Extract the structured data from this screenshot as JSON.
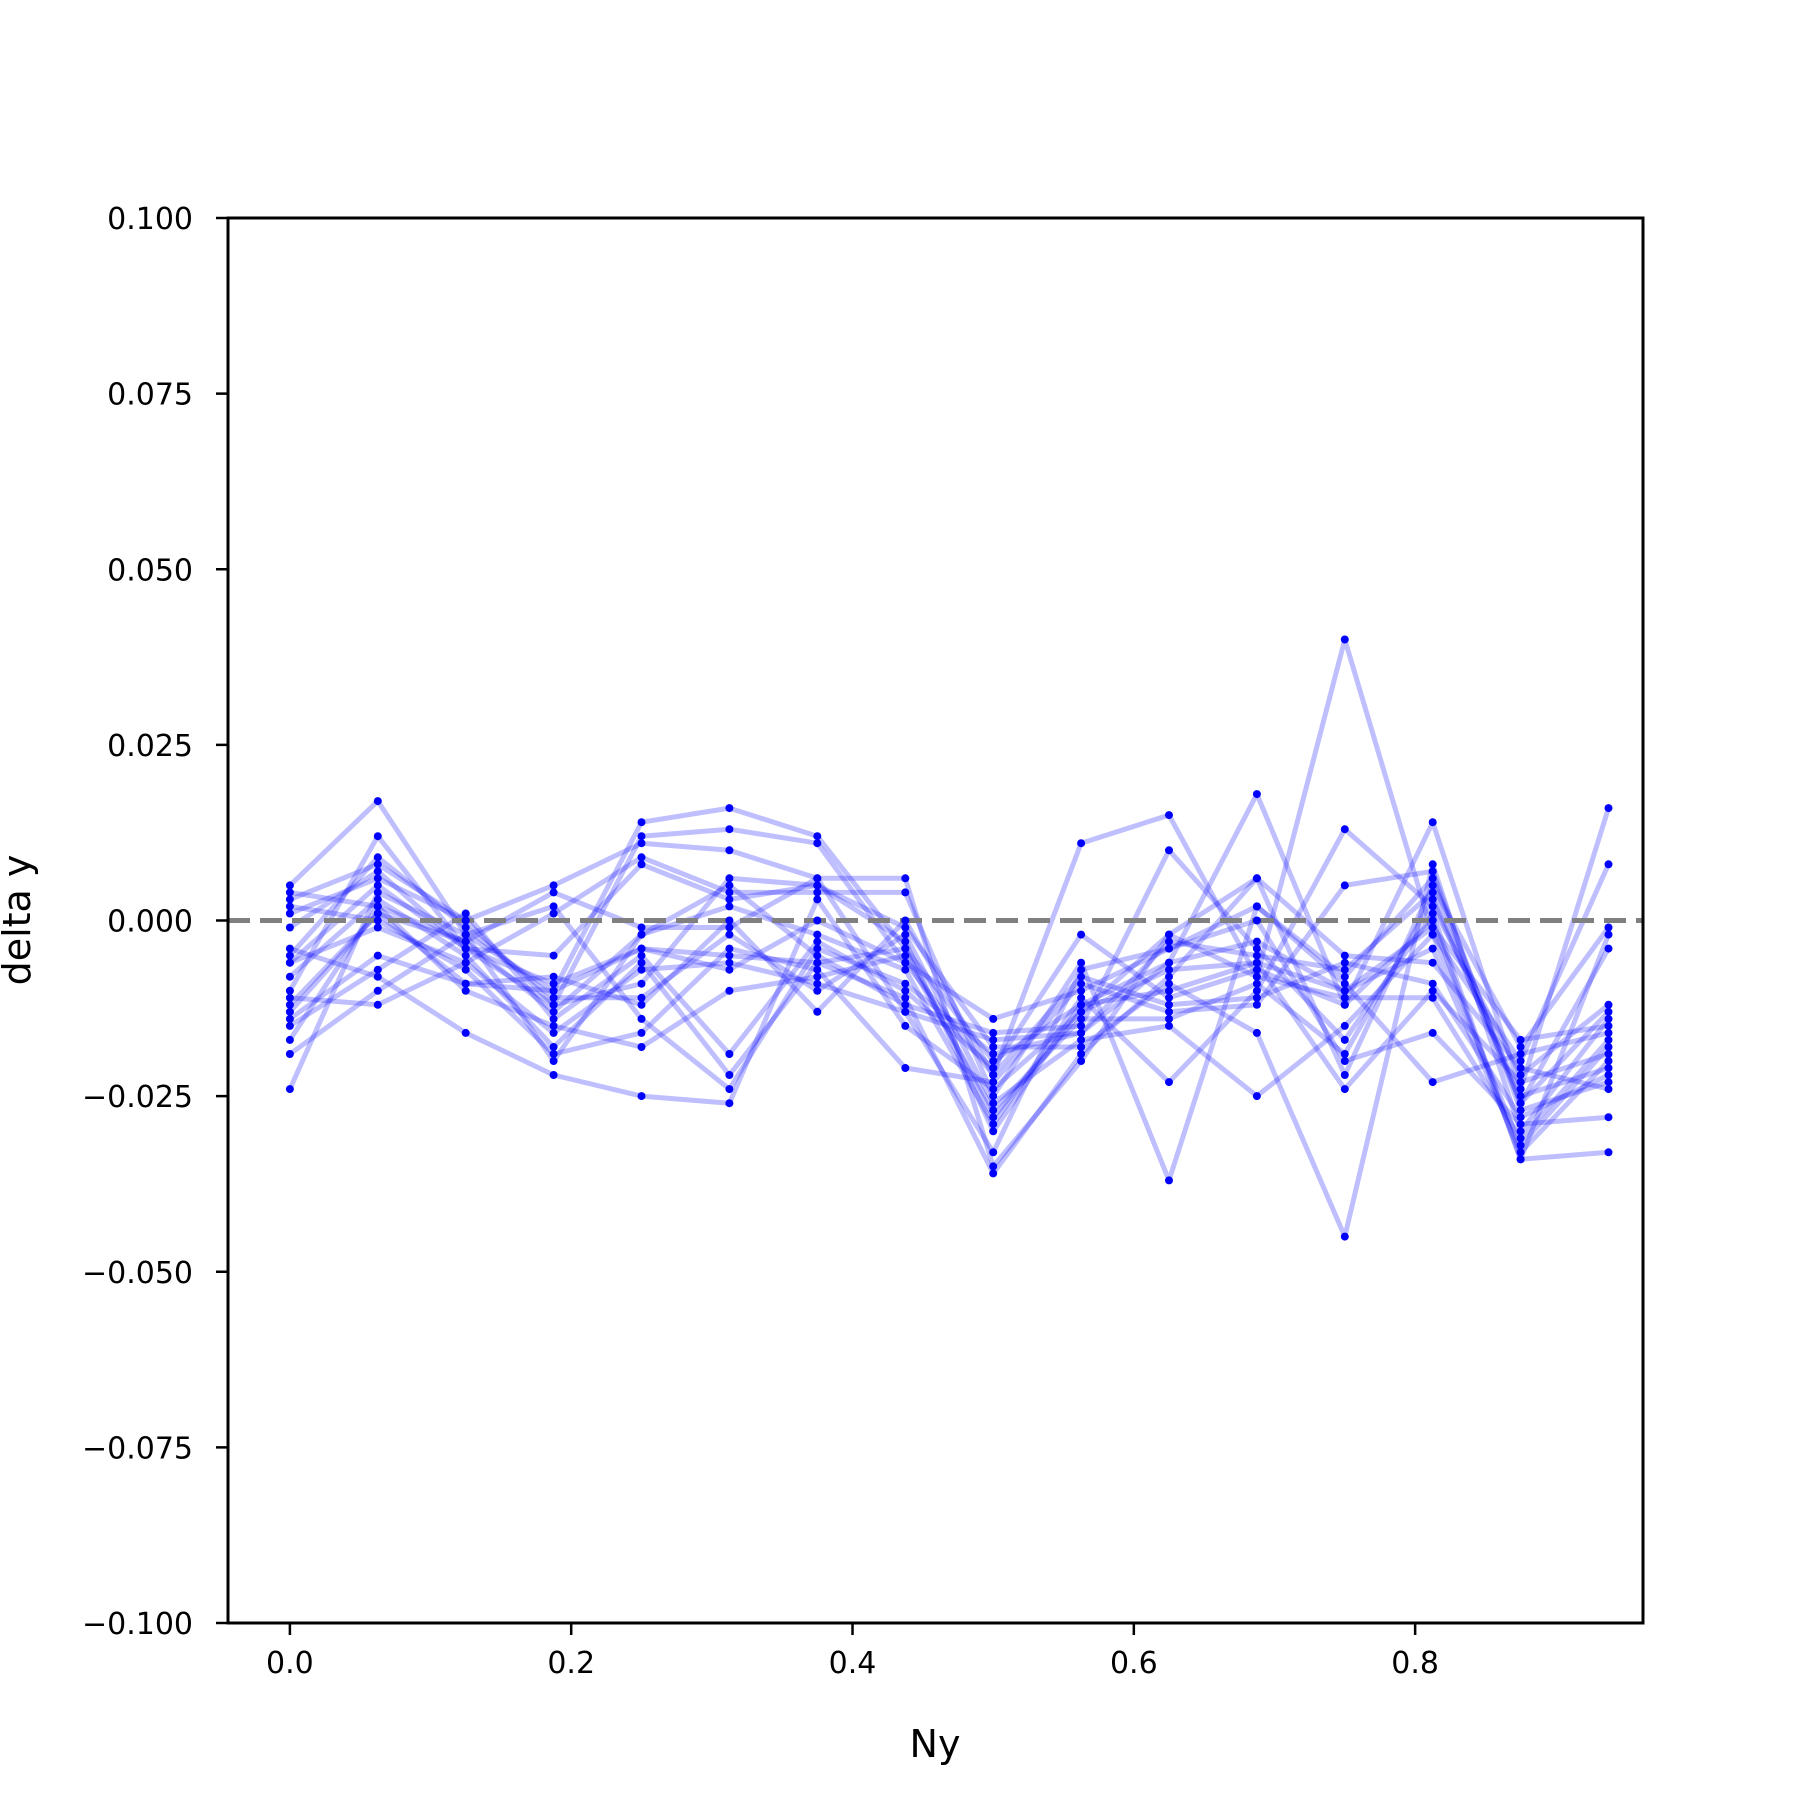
{
  "chart_data": {
    "type": "line",
    "title": "",
    "xlabel": "Ny",
    "ylabel": "delta y",
    "xlim": [
      -0.044,
      0.962
    ],
    "ylim": [
      -0.1,
      0.1
    ],
    "x_ticks": [
      0.0,
      0.2,
      0.4,
      0.6,
      0.8
    ],
    "x_tick_labels": [
      "0.0",
      "0.2",
      "0.4",
      "0.6",
      "0.8"
    ],
    "y_ticks": [
      0.1,
      0.075,
      0.05,
      0.025,
      0.0,
      -0.025,
      -0.05,
      -0.075,
      -0.1
    ],
    "y_tick_labels": [
      "0.100",
      "0.075",
      "0.050",
      "0.025",
      "0.000",
      "−0.025",
      "−0.050",
      "−0.075",
      "−0.100"
    ],
    "reference_line": {
      "y": 0.0,
      "style": "dashed",
      "color": "#808080"
    },
    "series_color": "#0000ff",
    "line_alpha": 0.25,
    "grid": false,
    "legend": "none",
    "x": [
      0.0,
      0.0625,
      0.125,
      0.1875,
      0.25,
      0.3125,
      0.375,
      0.4375,
      0.5,
      0.5625,
      0.625,
      0.6875,
      0.75,
      0.8125,
      0.875,
      0.9375
    ],
    "series": [
      {
        "values": [
          0.005,
          0.017,
          -0.002,
          -0.01,
          0.014,
          0.016,
          0.012,
          -0.004,
          -0.02,
          -0.012,
          -0.006,
          0.018,
          -0.012,
          0.014,
          -0.024,
          0.016
        ]
      },
      {
        "values": [
          -0.01,
          0.012,
          -0.004,
          -0.012,
          0.012,
          0.013,
          0.011,
          -0.006,
          -0.022,
          0.011,
          0.015,
          -0.008,
          0.04,
          -0.002,
          -0.02,
          0.008
        ]
      },
      {
        "values": [
          0.003,
          0.008,
          0.0,
          0.005,
          0.011,
          0.01,
          0.006,
          0.006,
          -0.035,
          -0.02,
          -0.002,
          0.006,
          -0.022,
          0.005,
          -0.018,
          -0.001
        ]
      },
      {
        "values": [
          -0.024,
          0.004,
          -0.002,
          -0.02,
          -0.002,
          0.005,
          -0.005,
          -0.012,
          -0.016,
          -0.015,
          0.01,
          -0.004,
          -0.017,
          0.001,
          -0.034,
          -0.002
        ]
      },
      {
        "values": [
          -0.006,
          -0.001,
          -0.006,
          0.001,
          0.009,
          0.004,
          0.004,
          0.004,
          -0.025,
          -0.006,
          -0.037,
          0.002,
          -0.008,
          0.006,
          -0.026,
          -0.004
        ]
      },
      {
        "values": [
          -0.013,
          0.001,
          -0.003,
          -0.013,
          -0.002,
          0.002,
          -0.002,
          -0.007,
          -0.029,
          -0.011,
          -0.023,
          -0.01,
          0.013,
          0.002,
          -0.022,
          -0.012
        ]
      },
      {
        "values": [
          0.001,
          0.006,
          0.0,
          -0.012,
          -0.009,
          0.006,
          0.005,
          -0.001,
          -0.018,
          -0.018,
          -0.009,
          -0.016,
          -0.045,
          0.008,
          -0.03,
          -0.014
        ]
      },
      {
        "values": [
          -0.011,
          -0.012,
          -0.006,
          -0.016,
          -0.007,
          -0.006,
          -0.009,
          -0.013,
          -0.033,
          -0.007,
          -0.004,
          0.002,
          -0.009,
          -0.023,
          -0.019,
          -0.016
        ]
      },
      {
        "values": [
          -0.004,
          -0.008,
          -0.016,
          -0.022,
          -0.025,
          -0.026,
          0.003,
          -0.015,
          -0.024,
          -0.013,
          -0.007,
          -0.006,
          -0.01,
          -0.004,
          -0.033,
          -0.02
        ]
      },
      {
        "values": [
          -0.017,
          0.002,
          -0.01,
          -0.015,
          -0.018,
          -0.01,
          -0.008,
          -0.005,
          -0.027,
          -0.014,
          -0.014,
          -0.009,
          -0.019,
          0.003,
          -0.025,
          -0.021
        ]
      },
      {
        "values": [
          -0.014,
          -0.005,
          -0.009,
          -0.008,
          -0.012,
          0.0,
          -0.013,
          0.0,
          -0.022,
          -0.008,
          -0.012,
          -0.011,
          -0.006,
          -0.009,
          -0.028,
          -0.022
        ]
      },
      {
        "values": [
          -0.008,
          0.003,
          -0.005,
          -0.018,
          -0.006,
          -0.022,
          -0.006,
          -0.011,
          -0.036,
          -0.019,
          -0.008,
          0.006,
          -0.005,
          -0.006,
          -0.021,
          -0.024
        ]
      },
      {
        "values": [
          0.002,
          0.0,
          -0.007,
          -0.019,
          -0.016,
          -0.004,
          -0.007,
          -0.021,
          -0.023,
          -0.009,
          -0.013,
          -0.012,
          0.005,
          0.007,
          -0.027,
          -0.023
        ]
      },
      {
        "values": [
          -0.005,
          0.009,
          -0.001,
          -0.011,
          -0.011,
          -0.002,
          -0.01,
          -0.002,
          -0.026,
          -0.017,
          -0.015,
          -0.025,
          -0.015,
          -0.002,
          -0.032,
          -0.018
        ]
      },
      {
        "values": [
          -0.001,
          0.007,
          -0.004,
          -0.009,
          -0.004,
          -0.007,
          0.0,
          -0.006,
          -0.014,
          -0.01,
          -0.004,
          0.0,
          -0.02,
          -0.016,
          -0.029,
          -0.028
        ]
      },
      {
        "values": [
          -0.019,
          -0.01,
          -0.002,
          0.002,
          -0.014,
          -0.024,
          -0.004,
          -0.009,
          -0.019,
          -0.016,
          -0.006,
          -0.003,
          -0.01,
          -0.001,
          -0.017,
          -0.015
        ]
      },
      {
        "values": [
          -0.006,
          0.005,
          -0.004,
          -0.005,
          0.008,
          0.003,
          0.005,
          -0.003,
          -0.03,
          -0.012,
          -0.01,
          -0.006,
          -0.024,
          -0.01,
          -0.023,
          -0.019
        ]
      },
      {
        "values": [
          -0.015,
          -0.007,
          0.001,
          -0.014,
          -0.005,
          -0.019,
          -0.003,
          -0.01,
          -0.021,
          -0.002,
          -0.011,
          -0.007,
          -0.012,
          0.0,
          -0.034,
          -0.033
        ]
      },
      {
        "values": [
          -0.012,
          0.001,
          -0.009,
          -0.01,
          -0.004,
          -0.005,
          -0.006,
          -0.004,
          -0.028,
          -0.013,
          -0.002,
          -0.008,
          -0.011,
          -0.011,
          -0.031,
          -0.017
        ]
      },
      {
        "values": [
          0.004,
          0.002,
          -0.003,
          0.004,
          -0.001,
          -0.001,
          0.006,
          -0.013,
          -0.017,
          -0.016,
          -0.003,
          -0.005,
          -0.007,
          0.004,
          -0.026,
          -0.013
        ]
      }
    ]
  }
}
